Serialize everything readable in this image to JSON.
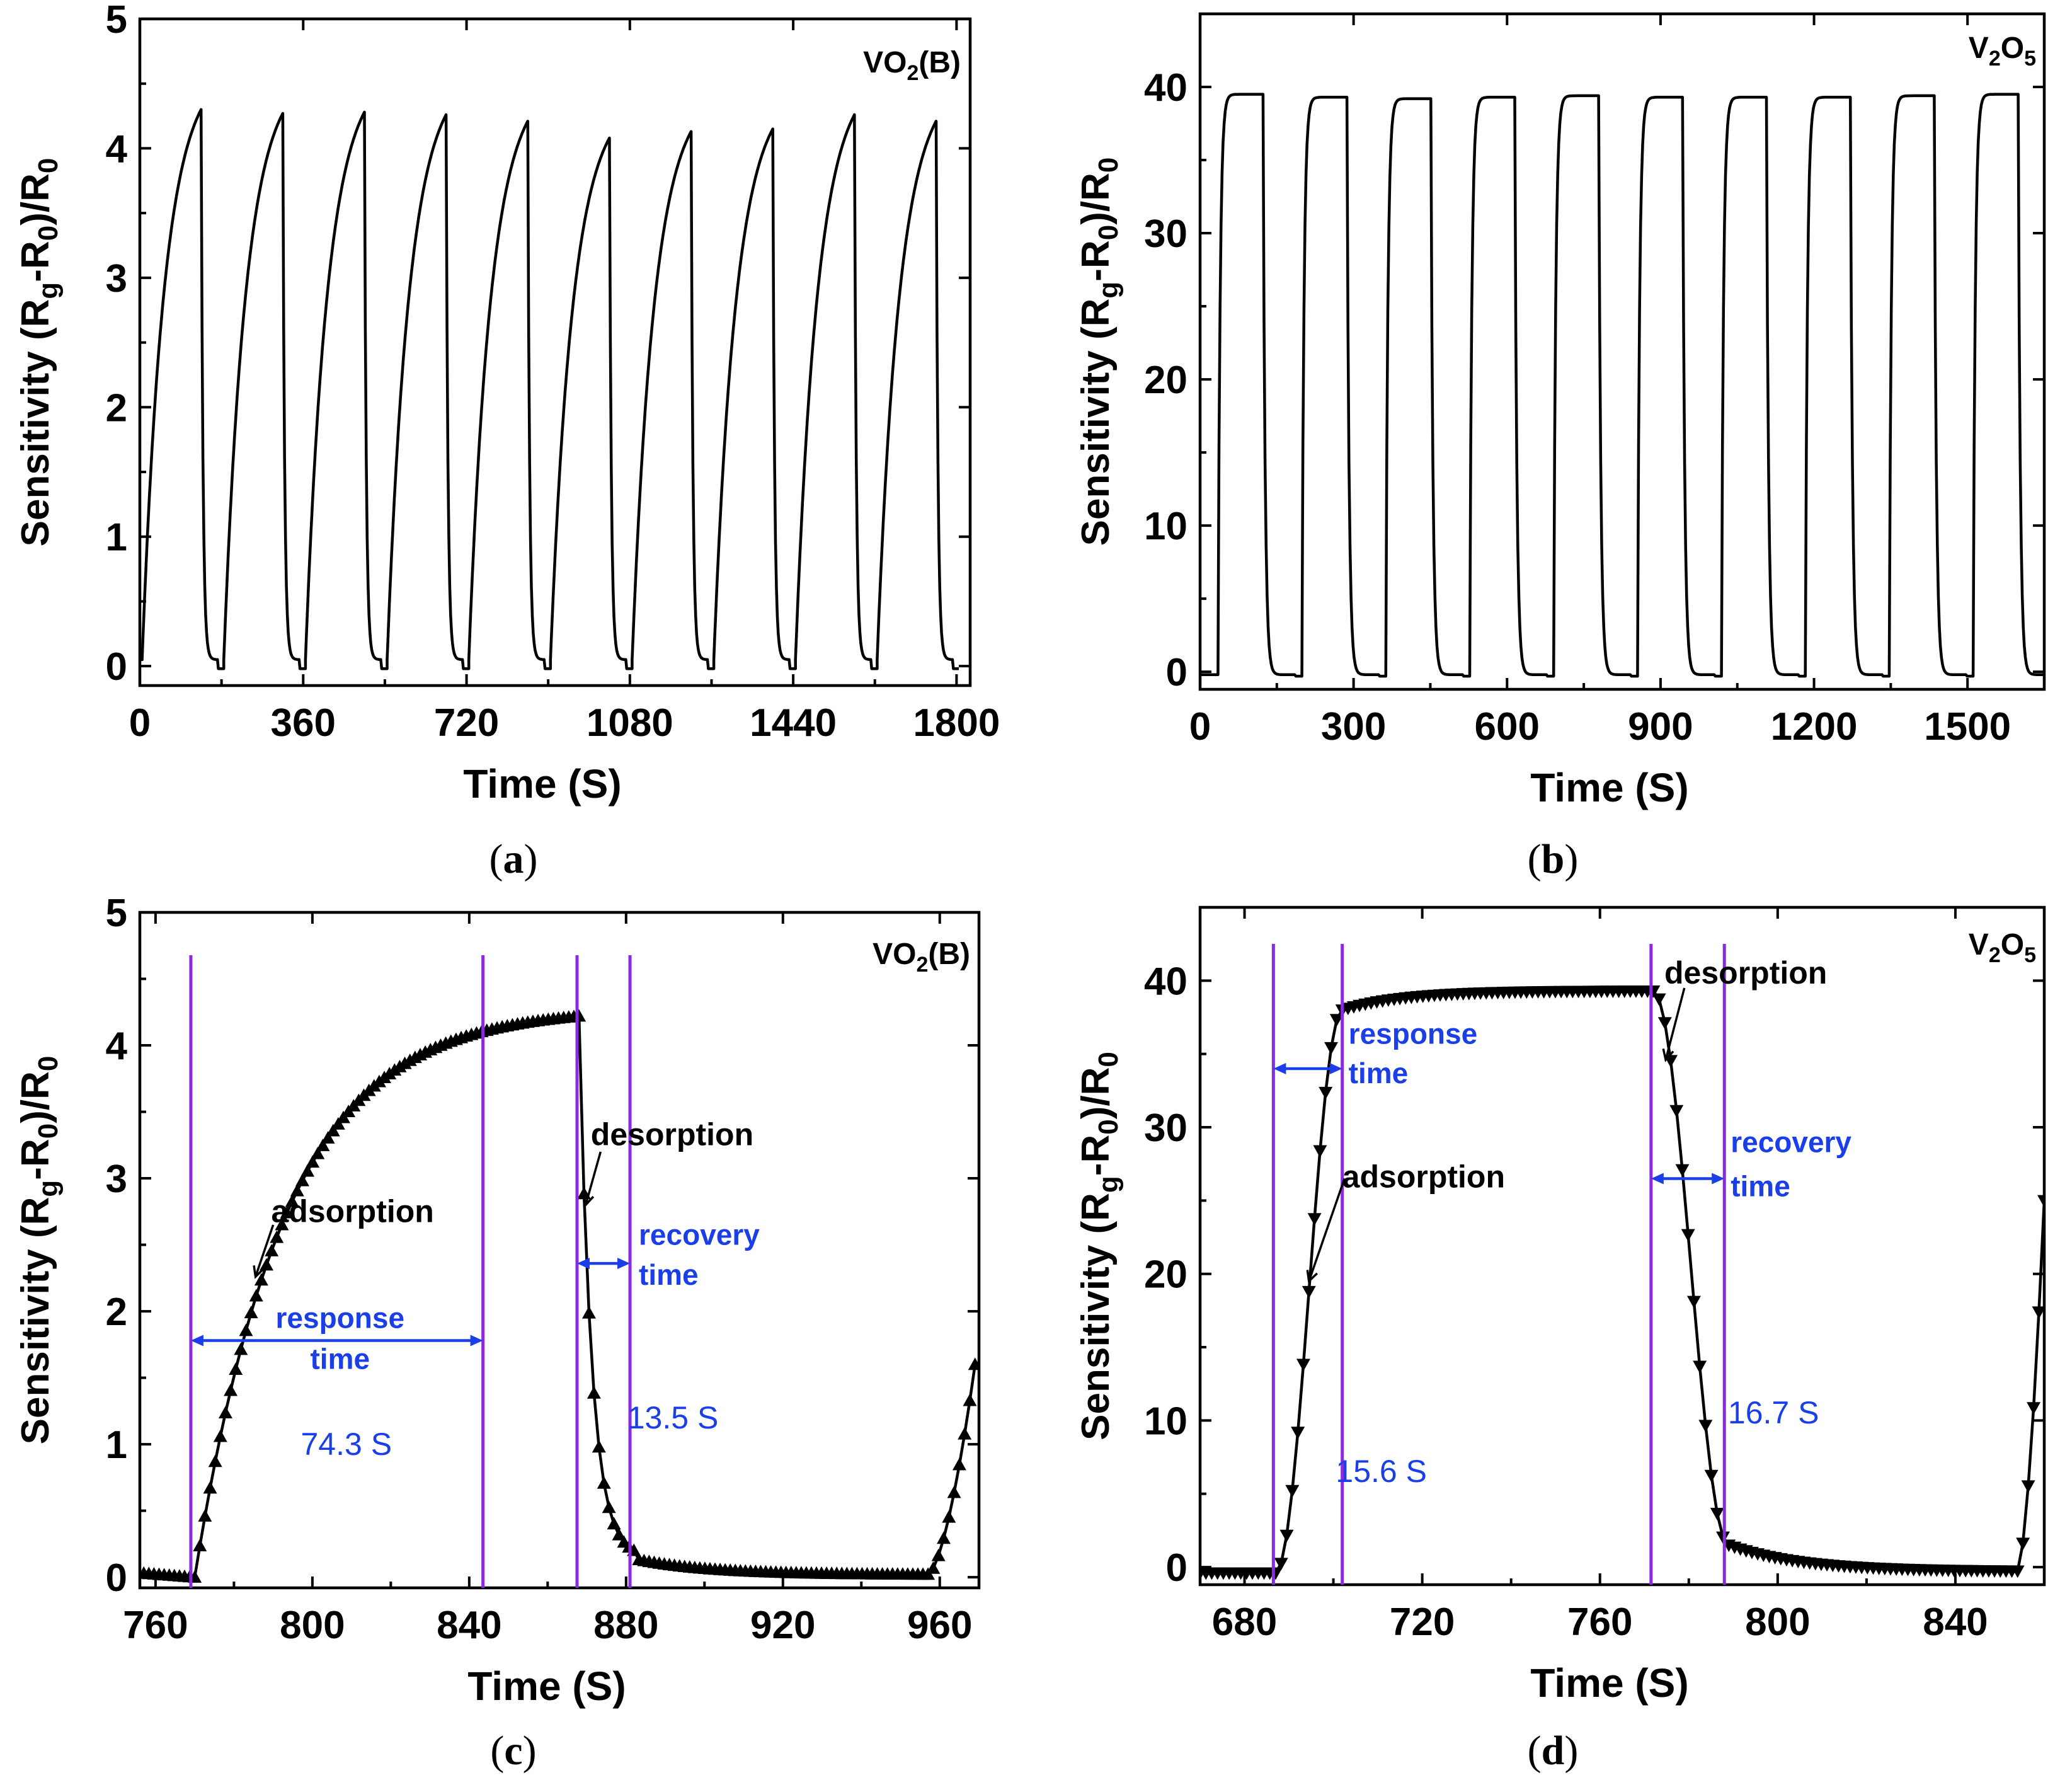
{
  "chart_data": [
    {
      "id": "a",
      "type": "line",
      "panel_label": "a",
      "material": "VO",
      "material_sub": "2",
      "material_suffix": "(B)",
      "xlabel": "Time (S)",
      "ylabel_parts": [
        "Sensitivity (R",
        "g",
        "-R",
        "0",
        ")/R",
        "0"
      ],
      "xlim": [
        0,
        1830
      ],
      "ylim": [
        -0.15,
        5
      ],
      "xticks": [
        0,
        360,
        720,
        1080,
        1440,
        1800
      ],
      "yticks": [
        0,
        1,
        2,
        3,
        4,
        5
      ],
      "cycle": {
        "start": 5,
        "period": 180,
        "rise_duration": 130,
        "baseline": 0.05,
        "tail": -0.02,
        "tau_rise": 50,
        "tau_fall": 4
      },
      "peaks": [
        4.3,
        4.27,
        4.28,
        4.26,
        4.21,
        4.08,
        4.13,
        4.15,
        4.26,
        4.21
      ]
    },
    {
      "id": "b",
      "type": "line",
      "panel_label": "b",
      "material": "V",
      "material_sub": "2",
      "material_mid": "O",
      "material_sub2": "5",
      "xlabel": "Time (S)",
      "ylabel_parts": [
        "Sensitivity (R",
        "g",
        "-R",
        "0",
        ")/R",
        "0"
      ],
      "xlim": [
        0,
        1650
      ],
      "ylim": [
        -1.2,
        45
      ],
      "xticks": [
        0,
        300,
        600,
        900,
        1200,
        1500
      ],
      "yticks": [
        0,
        10,
        20,
        30,
        40
      ],
      "cycle": {
        "start": 35,
        "period": 164,
        "rise_duration": 88,
        "baseline": -0.2,
        "tail": -0.3,
        "tau_rise": 4,
        "tau_fall": 4
      },
      "peaks": [
        39.5,
        39.3,
        39.2,
        39.3,
        39.4,
        39.3,
        39.3,
        39.3,
        39.4,
        39.5
      ]
    },
    {
      "id": "c",
      "type": "scatter",
      "panel_label": "c",
      "material": "VO",
      "material_sub": "2",
      "material_suffix": "(B)",
      "xlabel": "Time (S)",
      "ylabel_parts": [
        "Sensitivity (R",
        "g",
        "-R",
        "0",
        ")/R",
        "0"
      ],
      "xlim": [
        756,
        970
      ],
      "ylim": [
        -0.08,
        5
      ],
      "xticks": [
        760,
        800,
        840,
        880,
        920,
        960
      ],
      "yticks": [
        0,
        1,
        2,
        3,
        4,
        5
      ],
      "marker": "triangle-up",
      "segments": [
        {
          "phase": "baseline",
          "x_start": 757,
          "x_end": 770,
          "y_start": 0.03,
          "y_end": 0.0
        },
        {
          "phase": "adsorption",
          "x_start": 770,
          "x_end": 868,
          "peak": 4.22,
          "tau": 23
        },
        {
          "phase": "desorption",
          "x_start": 868,
          "x_end": 882,
          "end_value": 0.15
        },
        {
          "phase": "recovered",
          "x_start": 882,
          "x_end": 957,
          "y_start": 0.14,
          "y_end": 0.02
        },
        {
          "phase": "next-rise",
          "x_start": 957,
          "x_end": 969,
          "y_start": 0.02,
          "y_end": 1.6
        }
      ],
      "vlines": [
        769,
        843.5,
        867.5,
        881
      ],
      "response_time": "74.3 S",
      "recovery_time": "13.5 S",
      "labels": {
        "response": [
          "response",
          "time"
        ],
        "recovery": [
          "recovery",
          "time"
        ],
        "adsorption": "adsorption",
        "desorption": "desorption"
      }
    },
    {
      "id": "d",
      "type": "scatter",
      "panel_label": "d",
      "material": "V",
      "material_sub": "2",
      "material_mid": "O",
      "material_sub2": "5",
      "xlabel": "Time (S)",
      "ylabel_parts": [
        "Sensitivity (R",
        "g",
        "-R",
        "0",
        ")/R",
        "0"
      ],
      "xlim": [
        670,
        860
      ],
      "ylim": [
        -1.2,
        45
      ],
      "xticks": [
        680,
        720,
        760,
        800,
        840
      ],
      "yticks": [
        0,
        10,
        20,
        30,
        40
      ],
      "marker": "triangle-down",
      "segments": [
        {
          "phase": "baseline",
          "x_start": 670,
          "x_end": 687,
          "y_start": -0.4,
          "y_end": -0.4
        },
        {
          "phase": "adsorption",
          "x_start": 687,
          "x_end": 702,
          "y_start": -0.4,
          "y_end": 38
        },
        {
          "phase": "plateau",
          "x_start": 702,
          "x_end": 772,
          "y_start": 38,
          "y_end": 39.3
        },
        {
          "phase": "desorption",
          "x_start": 772,
          "x_end": 789,
          "y_start": 39.3,
          "y_end": 1.5
        },
        {
          "phase": "recovered",
          "x_start": 789,
          "x_end": 854,
          "y_start": 1.5,
          "y_end": -0.3
        },
        {
          "phase": "next-rise",
          "x_start": 854,
          "x_end": 860,
          "y_start": -0.3,
          "y_end": 25
        }
      ],
      "vlines": [
        686.5,
        702,
        771.5,
        788
      ],
      "response_time": "15.6 S",
      "recovery_time": "16.7 S",
      "labels": {
        "response": [
          "response",
          "time"
        ],
        "recovery": [
          "recovery",
          "time"
        ],
        "adsorption": "adsorption",
        "desorption": "desorption"
      }
    }
  ]
}
